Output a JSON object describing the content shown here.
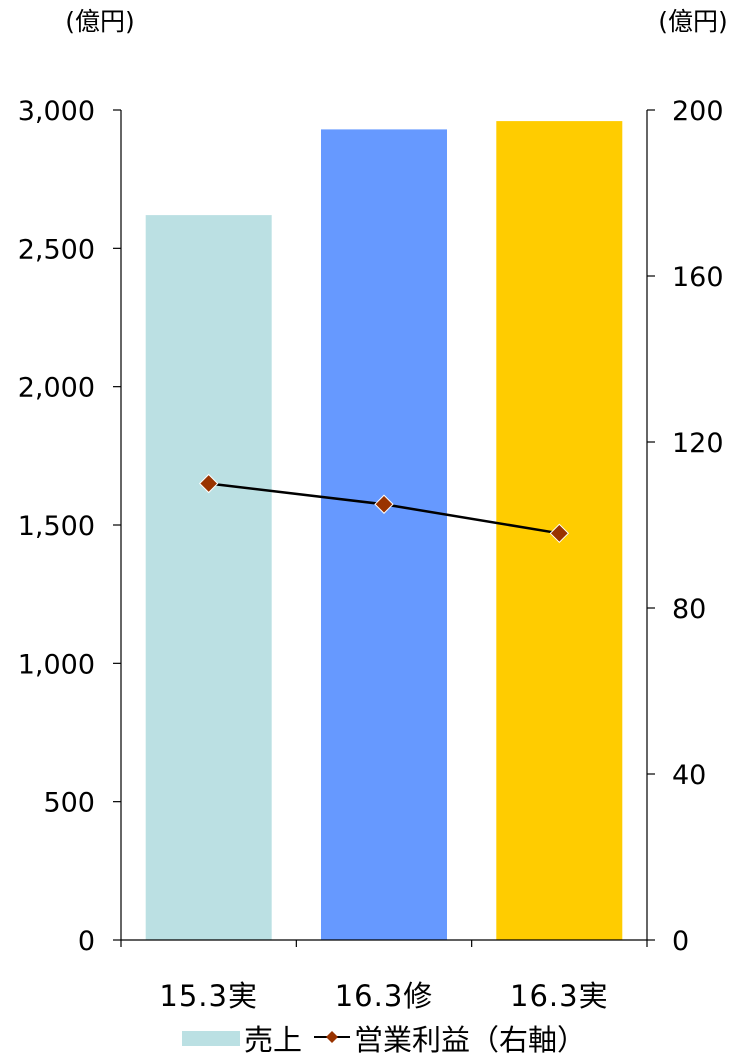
{
  "chart_data": {
    "type": "bar",
    "categories": [
      "15.3実",
      "16.3修",
      "16.3実"
    ],
    "series": [
      {
        "name": "売上",
        "type": "bar",
        "axis": "left",
        "values": [
          2620,
          2930,
          2960
        ],
        "colors": [
          "#BBE0E3",
          "#6699FF",
          "#FFCC00"
        ]
      },
      {
        "name": "営業利益（右軸）",
        "type": "line",
        "axis": "right",
        "values": [
          110,
          105,
          98
        ],
        "line_color": "#000000",
        "marker_color": "#993300",
        "marker": "diamond"
      }
    ],
    "y_left": {
      "unit": "(億円)",
      "ylim": [
        0,
        3000
      ],
      "ticks": [
        0,
        500,
        1000,
        1500,
        2000,
        2500,
        3000
      ],
      "tick_labels": [
        "0",
        "500",
        "1,000",
        "1,500",
        "2,000",
        "2,500",
        "3,000"
      ]
    },
    "y_right": {
      "unit": "(億円)",
      "ylim": [
        0,
        200
      ],
      "ticks": [
        0,
        40,
        80,
        120,
        160,
        200
      ],
      "tick_labels": [
        "0",
        "40",
        "80",
        "120",
        "160",
        "200"
      ]
    },
    "grid": false,
    "legend": {
      "position": "bottom",
      "bar_item_label": "売上",
      "line_item_label": "営業利益（右軸）"
    }
  }
}
